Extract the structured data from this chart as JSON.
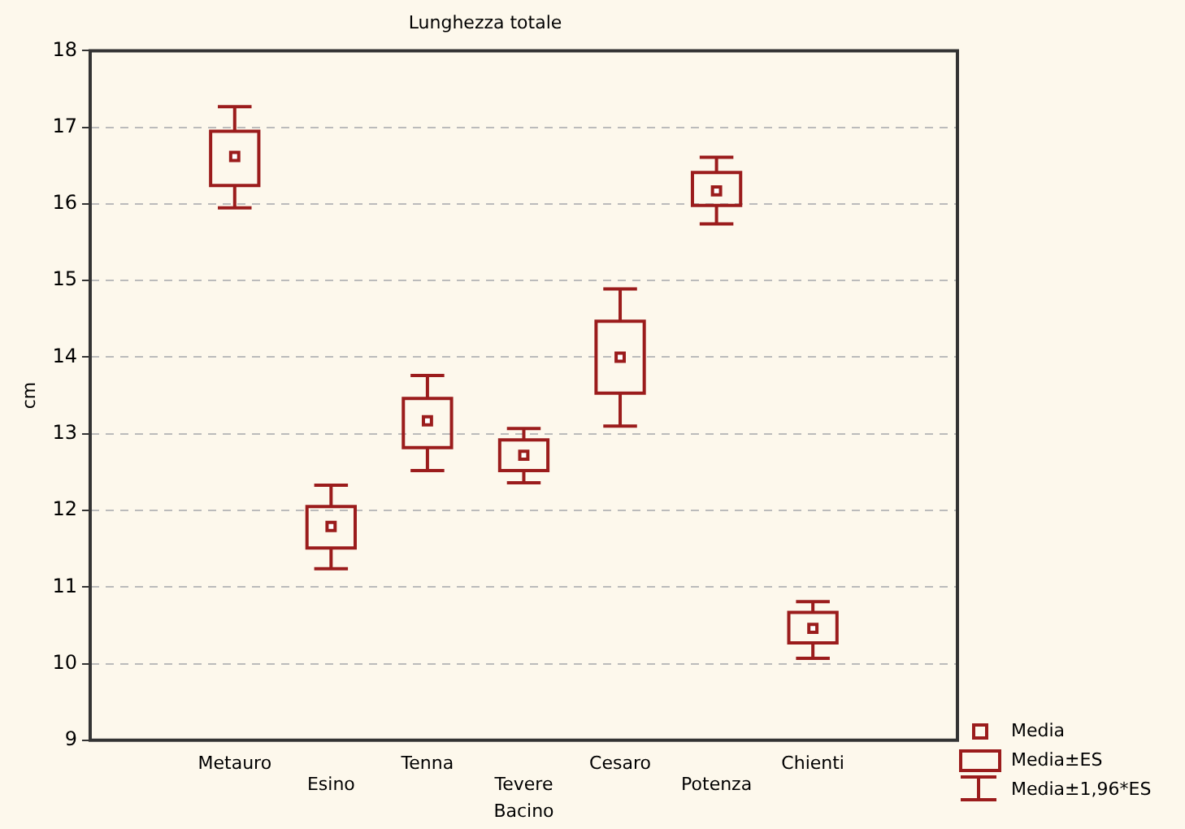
{
  "chart_data": {
    "type": "box",
    "title": "Lunghezza totale",
    "xlabel": "Bacino",
    "ylabel": "cm",
    "categories": [
      "Metauro",
      "Esino",
      "Tenna",
      "Tevere",
      "Cesaro",
      "Potenza",
      "Chienti"
    ],
    "series": [
      {
        "color": "#9b1c1c",
        "boxes": [
          {
            "low": 15.95,
            "q1": 16.24,
            "median": 16.62,
            "q3": 16.95,
            "high": 17.27
          },
          {
            "low": 11.24,
            "q1": 11.51,
            "median": 11.79,
            "q3": 12.05,
            "high": 12.33
          },
          {
            "low": 12.52,
            "q1": 12.82,
            "median": 13.17,
            "q3": 13.46,
            "high": 13.76
          },
          {
            "low": 12.36,
            "q1": 12.52,
            "median": 12.72,
            "q3": 12.92,
            "high": 13.07
          },
          {
            "low": 13.1,
            "q1": 13.53,
            "median": 14.0,
            "q3": 14.47,
            "high": 14.89
          },
          {
            "low": 15.74,
            "q1": 15.98,
            "median": 16.17,
            "q3": 16.41,
            "high": 16.61
          },
          {
            "low": 10.07,
            "q1": 10.27,
            "median": 10.46,
            "q3": 10.67,
            "high": 10.81
          }
        ]
      }
    ],
    "ylim": [
      9,
      18
    ],
    "yticks": [
      9,
      10,
      11,
      12,
      13,
      14,
      15,
      16,
      17,
      18
    ],
    "grid": "y",
    "annotations": [
      "Media",
      "Media±ES",
      "Media±1,96*ES"
    ]
  }
}
